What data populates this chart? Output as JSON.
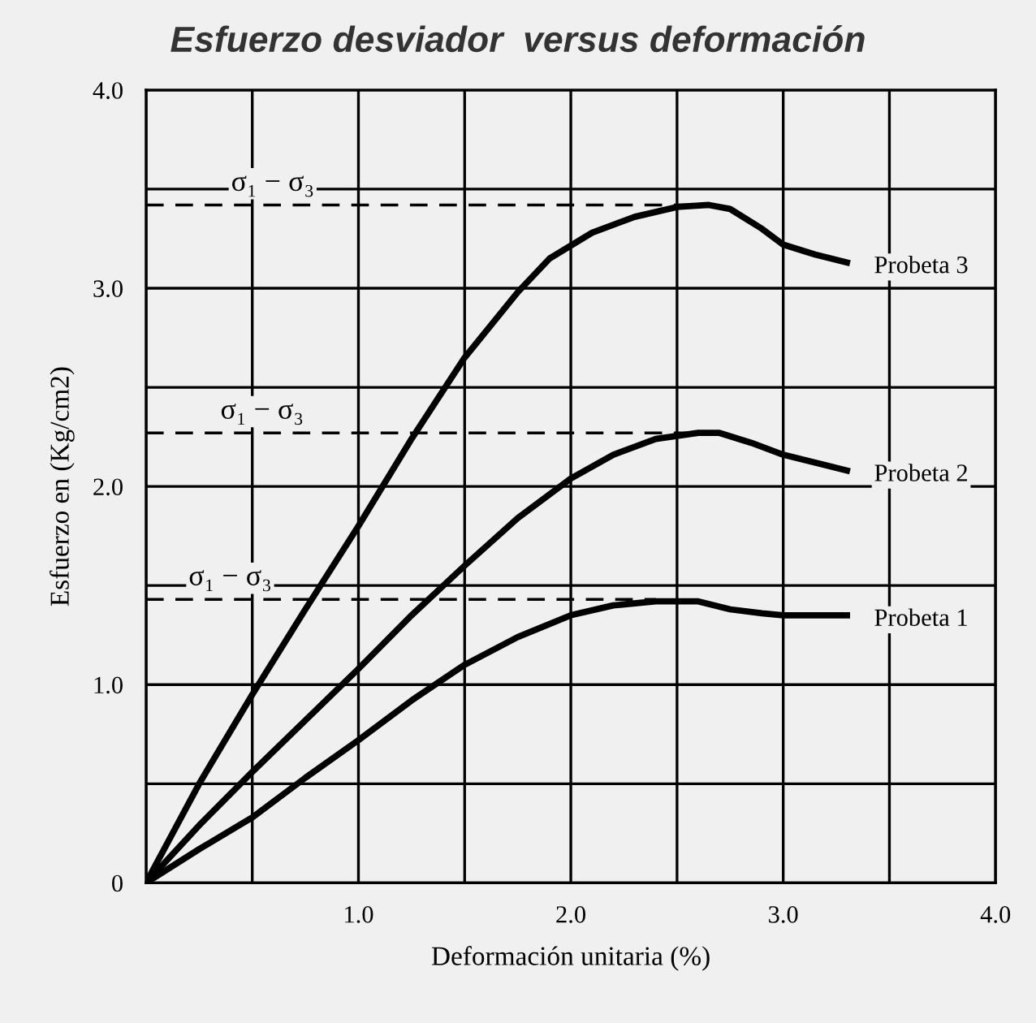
{
  "chart_data": {
    "type": "line",
    "title": "Esfuerzo desviador  versus deformación",
    "xlabel": "Deformación unitaria (%)",
    "ylabel": "Esfuerzo en (Kg/cm2)",
    "xlim": [
      0,
      4
    ],
    "ylim": [
      0,
      4
    ],
    "xticks": [
      {
        "value": 0,
        "label": null
      },
      {
        "value": 0.5,
        "label": null
      },
      {
        "value": 1,
        "label": "1.0"
      },
      {
        "value": 1.5,
        "label": null
      },
      {
        "value": 2,
        "label": "2.0"
      },
      {
        "value": 2.5,
        "label": null
      },
      {
        "value": 3,
        "label": "3.0"
      },
      {
        "value": 3.5,
        "label": null
      },
      {
        "value": 4,
        "label": "4.0"
      }
    ],
    "yticks": [
      0,
      {
        "value": 0.5,
        "label": null
      },
      {
        "value": 1,
        "label": "1.0"
      },
      {
        "value": 1.5,
        "label": null
      },
      {
        "value": 2,
        "label": "2.0"
      },
      {
        "value": 2.5,
        "label": null
      },
      {
        "value": 3,
        "label": "3.0"
      },
      {
        "value": 3.5,
        "label": null
      },
      {
        "value": 4,
        "label": "4.0"
      }
    ],
    "grid": true,
    "legend": false,
    "marker": "none",
    "line_style": "solid",
    "series": [
      {
        "name": "Probeta 3",
        "color": "#000000",
        "x": [
          0,
          0.25,
          0.5,
          0.75,
          1.0,
          1.25,
          1.5,
          1.75,
          1.9,
          2.1,
          2.3,
          2.5,
          2.65,
          2.75,
          2.9,
          3.0,
          3.15,
          3.3
        ],
        "values": [
          0,
          0.5,
          0.95,
          1.38,
          1.8,
          2.24,
          2.65,
          2.98,
          3.15,
          3.28,
          3.36,
          3.41,
          3.42,
          3.4,
          3.3,
          3.22,
          3.17,
          3.13
        ]
      },
      {
        "name": "Probeta 2",
        "color": "#000000",
        "x": [
          0,
          0.25,
          0.5,
          0.75,
          1.0,
          1.25,
          1.5,
          1.75,
          2.0,
          2.2,
          2.4,
          2.6,
          2.7,
          2.85,
          3.0,
          3.15,
          3.3
        ],
        "values": [
          0,
          0.29,
          0.56,
          0.82,
          1.08,
          1.35,
          1.6,
          1.84,
          2.04,
          2.16,
          2.24,
          2.27,
          2.27,
          2.22,
          2.16,
          2.12,
          2.08
        ]
      },
      {
        "name": "Probeta 1",
        "color": "#000000",
        "x": [
          0,
          0.25,
          0.5,
          0.75,
          1.0,
          1.25,
          1.5,
          1.75,
          2.0,
          2.2,
          2.4,
          2.6,
          2.75,
          2.9,
          3.0,
          3.15,
          3.3
        ],
        "values": [
          0,
          0.17,
          0.33,
          0.53,
          0.72,
          0.92,
          1.1,
          1.24,
          1.35,
          1.4,
          1.42,
          1.42,
          1.38,
          1.36,
          1.35,
          1.35,
          1.35
        ]
      }
    ],
    "ref_lines": [
      {
        "axis": "y",
        "value": 3.42,
        "label": "σ₁ − σ₃",
        "color": "#000000",
        "line_style": "dashed"
      },
      {
        "axis": "y",
        "value": 2.27,
        "label": "σ₁ − σ₃",
        "color": "#000000",
        "line_style": "dashed"
      },
      {
        "axis": "y",
        "value": 1.43,
        "label": "σ₁ − σ₃",
        "color": "#000000",
        "line_style": "dashed"
      }
    ]
  }
}
